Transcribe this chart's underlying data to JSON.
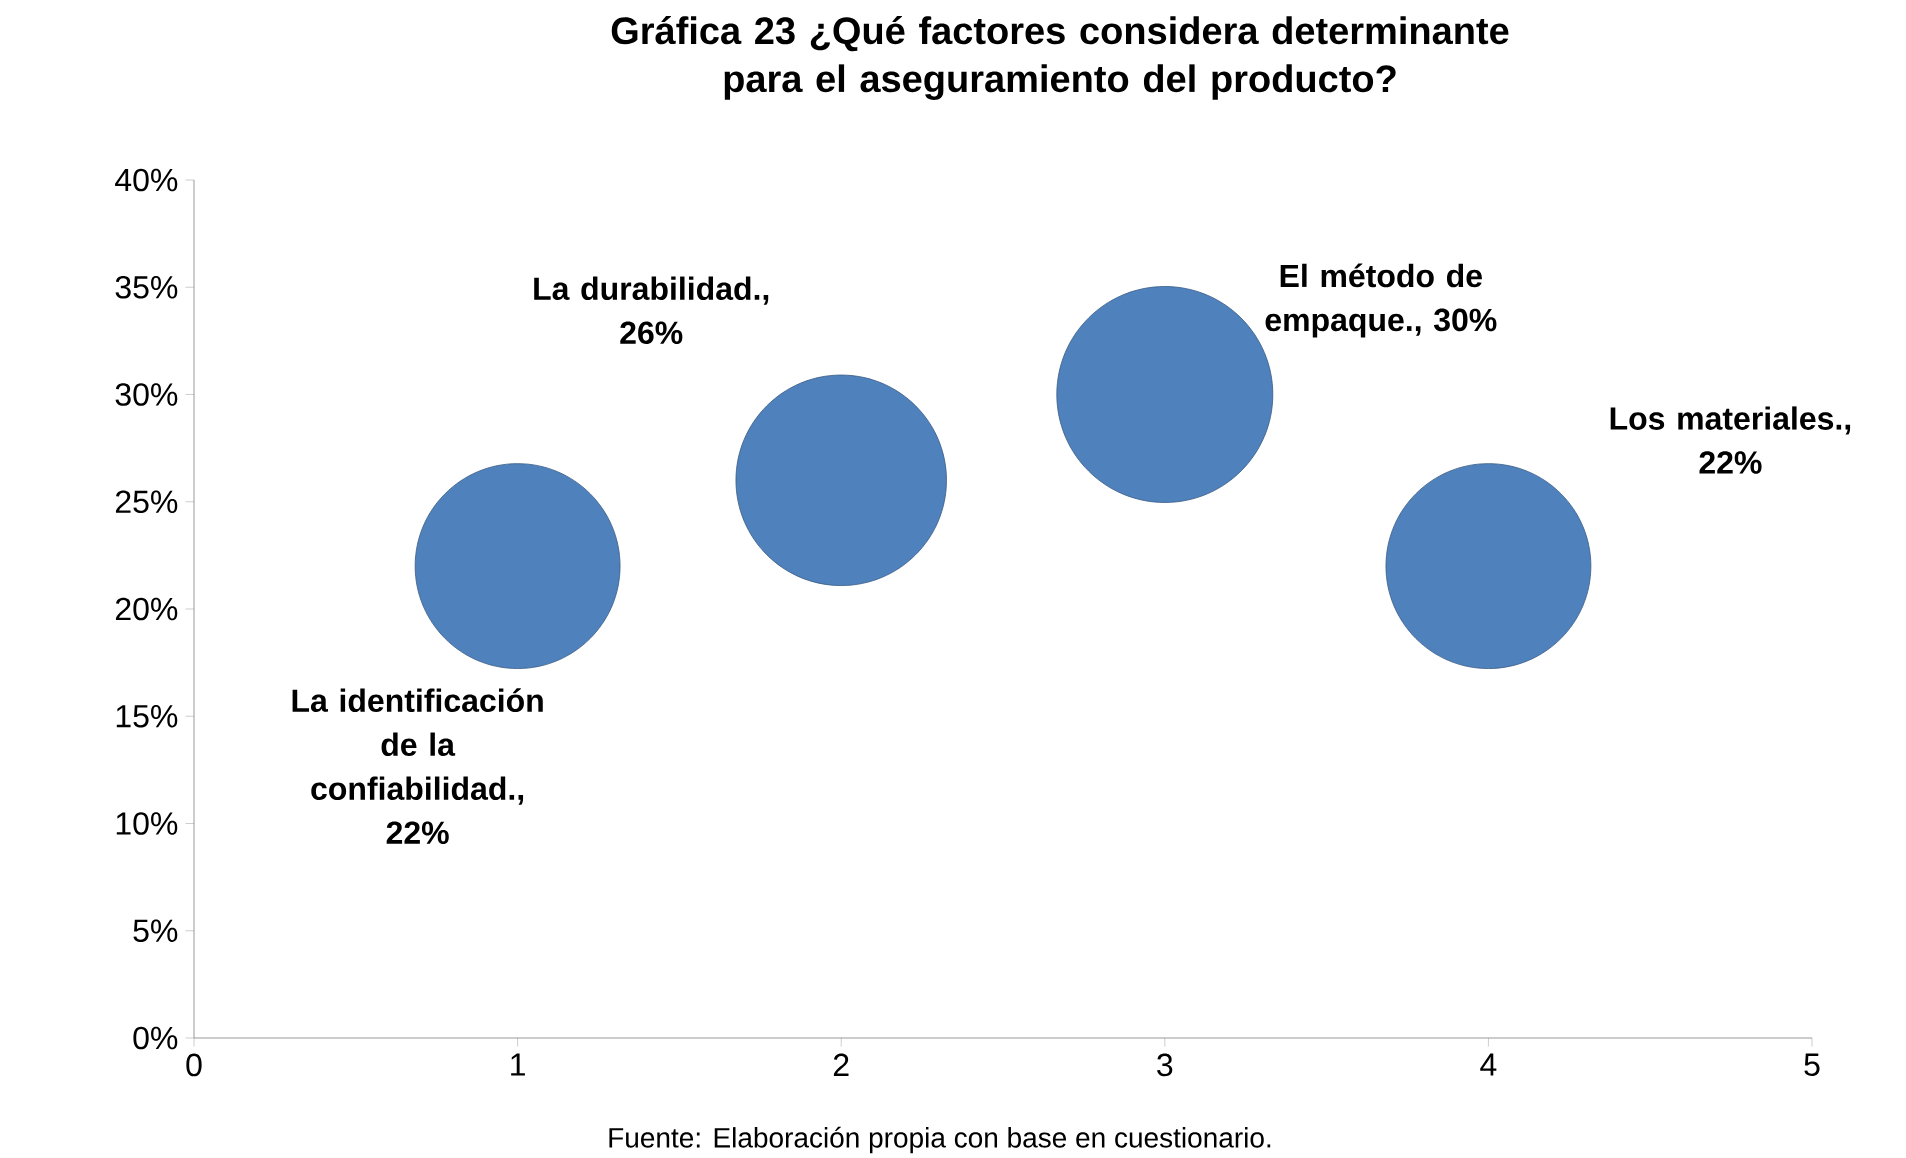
{
  "chart_data": {
    "type": "bubble",
    "title": "Gráfica 23 ¿Qué factores considera determinante para el aseguramiento del producto?",
    "x": [
      1,
      2,
      3,
      4
    ],
    "series": [
      {
        "color": "#4f81bd",
        "values": [
          22,
          26,
          30,
          22
        ],
        "sizes": [
          0.9,
          0.95,
          1,
          0.9
        ],
        "value_labels": [
          "La identificación de la confiabilidad., 22%",
          "La durabilidad., 26%",
          "El método de empaque., 30%",
          "Los materiales., 22%"
        ]
      }
    ],
    "xlim": [
      0,
      5
    ],
    "xticks": [
      0,
      1,
      2,
      3,
      4,
      5
    ],
    "ylim": [
      0,
      40
    ],
    "yticks": [
      {
        "value": 0,
        "label": "0%"
      },
      {
        "value": 5,
        "label": "5%"
      },
      {
        "value": 10,
        "label": "10%"
      },
      {
        "value": 15,
        "label": "15%"
      },
      {
        "value": 20,
        "label": "20%"
      },
      {
        "value": 25,
        "label": "25%"
      },
      {
        "value": 30,
        "label": "30%"
      },
      {
        "value": 35,
        "label": "35%"
      },
      {
        "value": 40,
        "label": "40%"
      }
    ],
    "grid": false,
    "annotations": [
      "Fuente: Elaboración propia con base en cuestionario."
    ]
  }
}
